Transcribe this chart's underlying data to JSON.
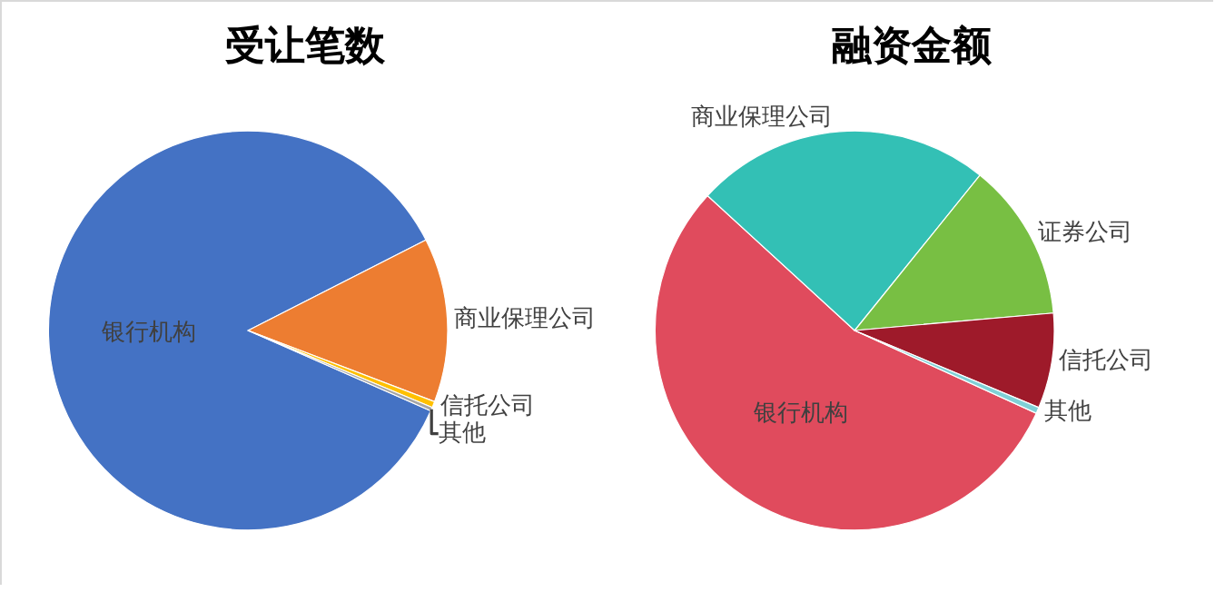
{
  "chart_data": [
    {
      "type": "pie",
      "title": "受让笔数",
      "categories": [
        "银行机构",
        "商业保理公司",
        "信托公司",
        "其他"
      ],
      "values": [
        85.9,
        13.3,
        0.5,
        0.3
      ],
      "colors": [
        "#4472c4",
        "#ed7d31",
        "#ffc000",
        "#a5a5a5"
      ],
      "legend": false
    },
    {
      "type": "pie",
      "title": "融资金额",
      "categories": [
        "银行机构",
        "商业保理公司",
        "证券公司",
        "信托公司",
        "其他"
      ],
      "values": [
        55.0,
        24.0,
        12.8,
        7.7,
        0.5
      ],
      "colors": [
        "#e04b5d",
        "#33c0b5",
        "#78bf43",
        "#9e1a2a",
        "#7fd0d6"
      ],
      "legend": false
    }
  ]
}
